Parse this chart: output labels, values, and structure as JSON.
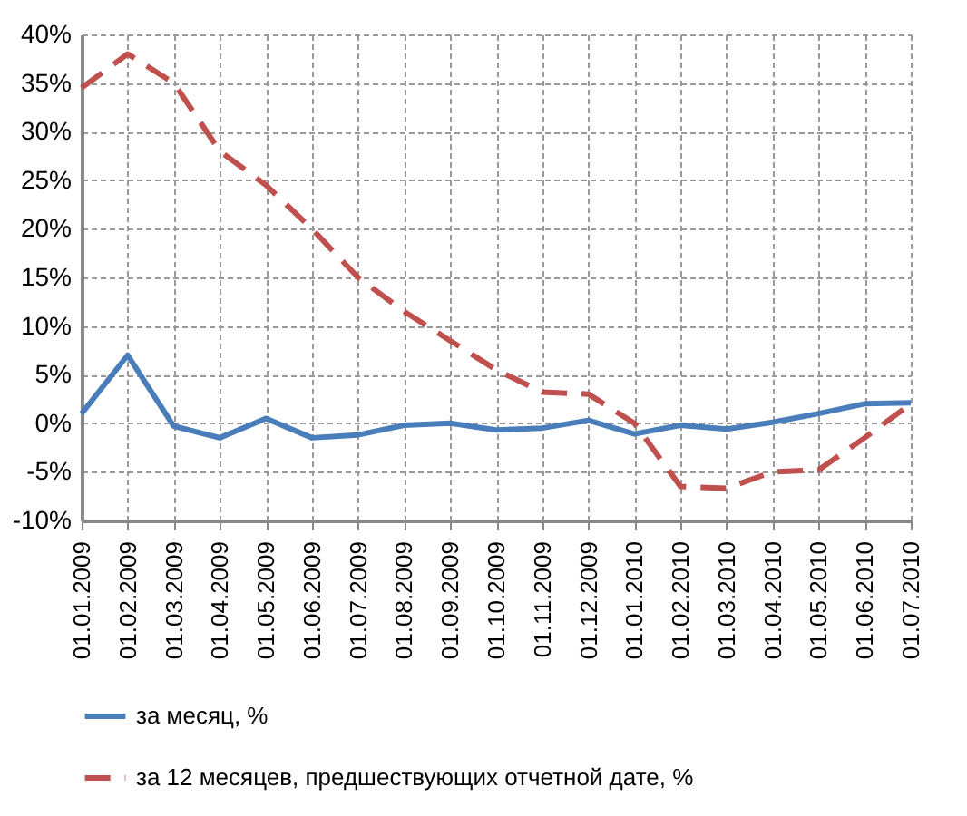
{
  "chart_data": {
    "type": "line",
    "categories": [
      "01.01.2009",
      "01.02.2009",
      "01.03.2009",
      "01.04.2009",
      "01.05.2009",
      "01.06.2009",
      "01.07.2009",
      "01.08.2009",
      "01.09.2009",
      "01.10.2009",
      "01.11.2009",
      "01.12.2009",
      "01.01.2010",
      "01.02.2010",
      "01.03.2010",
      "01.04.2010",
      "01.05.2010",
      "01.06.2010",
      "01.07.2010"
    ],
    "series": [
      {
        "name": "за месяц, %",
        "color": "#4a7ebb",
        "line_style": "solid",
        "values": [
          1.0,
          7.0,
          -0.3,
          -1.5,
          0.5,
          -1.5,
          -1.2,
          -0.2,
          0.0,
          -0.7,
          -0.5,
          0.3,
          -1.1,
          -0.2,
          -0.6,
          0.1,
          1.0,
          2.0,
          2.1
        ]
      },
      {
        "name": "за 12 месяцев, предшествующих отчетной дате, %",
        "color": "#c0504d",
        "line_style": "dashed",
        "values": [
          34.5,
          38.0,
          35.0,
          28.0,
          24.5,
          20.0,
          15.0,
          11.5,
          8.5,
          5.5,
          3.2,
          3.0,
          0.0,
          -6.5,
          -6.7,
          -5.0,
          -4.8,
          -1.5,
          2.0
        ]
      }
    ],
    "ylim": [
      -10,
      40
    ],
    "yticks": [
      {
        "value": -10,
        "label": "-10%"
      },
      {
        "value": -5,
        "label": "-5%"
      },
      {
        "value": 0,
        "label": "0%"
      },
      {
        "value": 5,
        "label": "5%"
      },
      {
        "value": 10,
        "label": "10%"
      },
      {
        "value": 15,
        "label": "15%"
      },
      {
        "value": 20,
        "label": "20%"
      },
      {
        "value": 25,
        "label": "25%"
      },
      {
        "value": 30,
        "label": "30%"
      },
      {
        "value": 35,
        "label": "35%"
      },
      {
        "value": 40,
        "label": "40%"
      }
    ],
    "grid": true,
    "legend": "bottom",
    "marker": "none"
  }
}
